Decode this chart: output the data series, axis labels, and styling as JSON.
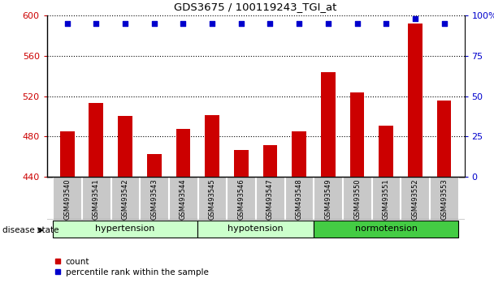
{
  "title": "GDS3675 / 100119243_TGI_at",
  "samples": [
    "GSM493540",
    "GSM493541",
    "GSM493542",
    "GSM493543",
    "GSM493544",
    "GSM493545",
    "GSM493546",
    "GSM493547",
    "GSM493548",
    "GSM493549",
    "GSM493550",
    "GSM493551",
    "GSM493552",
    "GSM493553"
  ],
  "count_values": [
    485,
    513,
    500,
    462,
    487,
    501,
    466,
    471,
    485,
    544,
    524,
    491,
    592,
    516
  ],
  "percentile_values": [
    95,
    95,
    95,
    95,
    95,
    95,
    95,
    95,
    95,
    95,
    95,
    95,
    98,
    95
  ],
  "ylim_left": [
    440,
    600
  ],
  "ylim_right": [
    0,
    100
  ],
  "yticks_left": [
    440,
    480,
    520,
    560,
    600
  ],
  "yticks_right": [
    0,
    25,
    50,
    75,
    100
  ],
  "bar_color": "#cc0000",
  "dot_color": "#0000cc",
  "bar_width": 0.5,
  "groups": [
    {
      "label": "hypertension",
      "start": 0,
      "end": 5,
      "color": "#ccffcc"
    },
    {
      "label": "hypotension",
      "start": 5,
      "end": 9,
      "color": "#ccffcc"
    },
    {
      "label": "normotension",
      "start": 9,
      "end": 14,
      "color": "#44cc44"
    }
  ],
  "group_colors": [
    "#ccffcc",
    "#ccffcc",
    "#44cc44"
  ],
  "disease_state_label": "disease state",
  "legend_count_label": "count",
  "legend_percentile_label": "percentile rank within the sample",
  "left_tick_color": "#cc0000",
  "right_tick_color": "#0000cc",
  "background_color": "#ffffff",
  "tick_label_bg": "#c8c8c8"
}
